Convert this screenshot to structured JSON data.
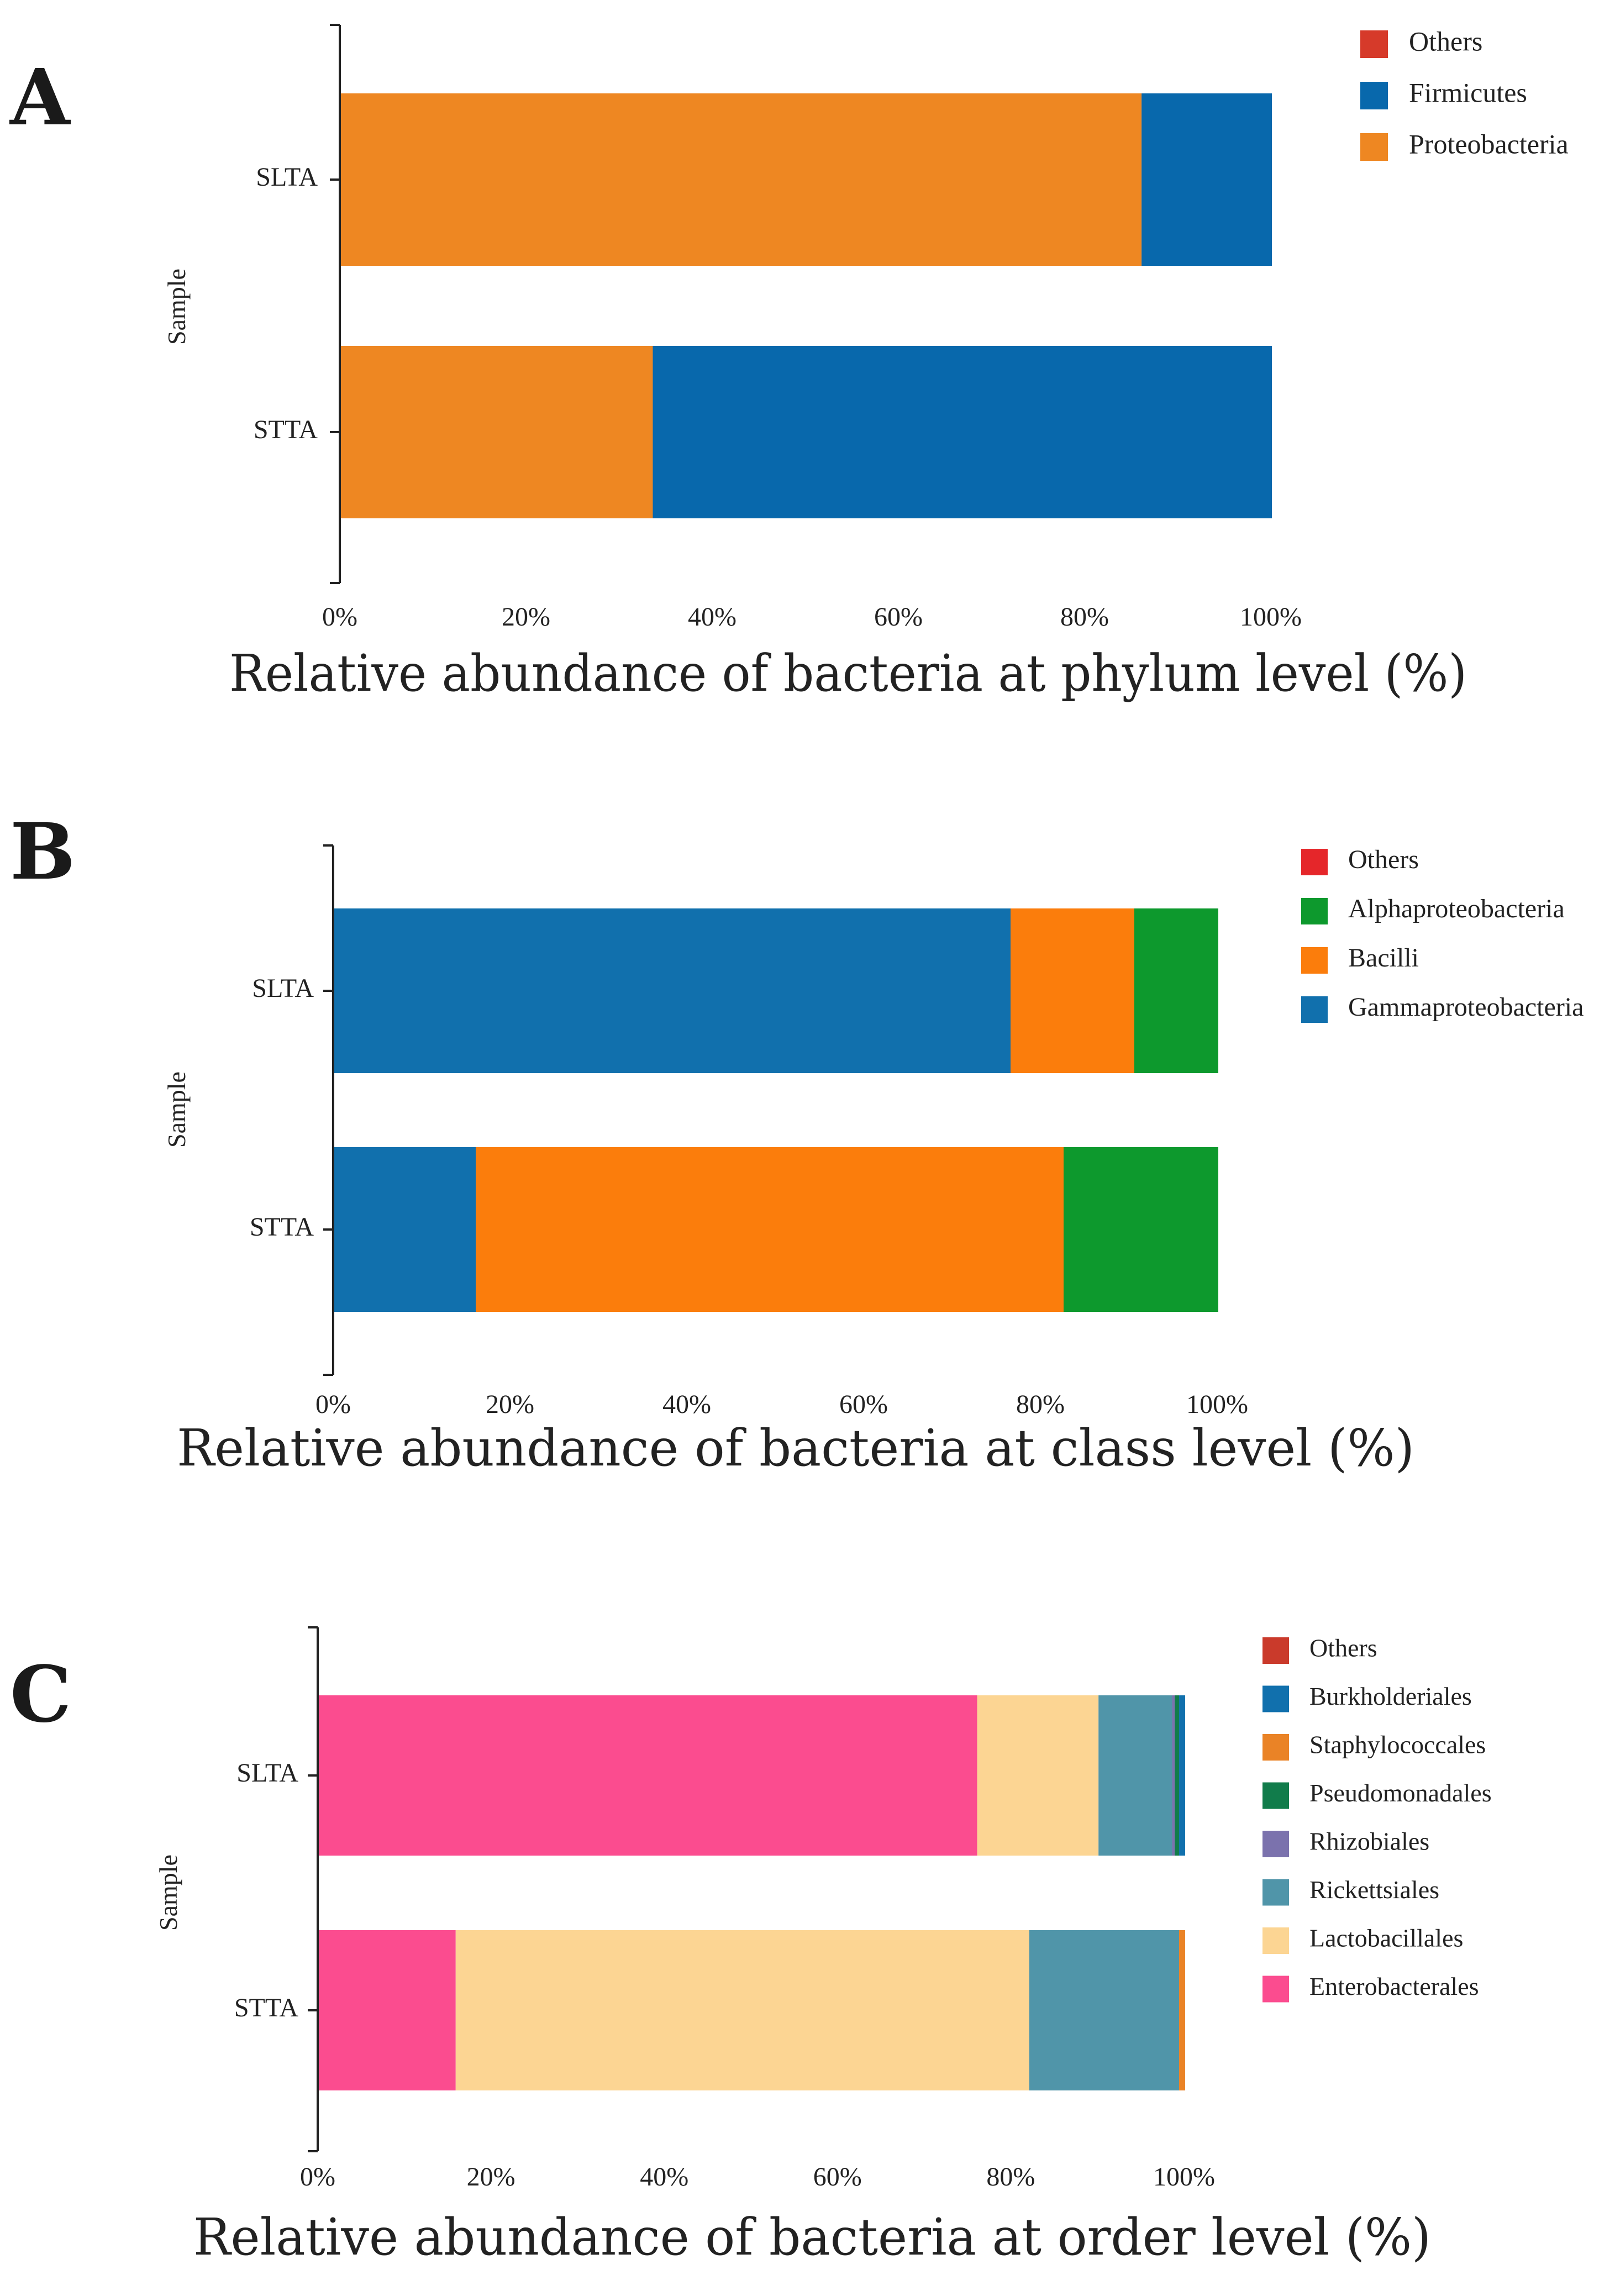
{
  "chart_data": [
    {
      "type": "bar",
      "orientation": "horizontal",
      "stacked": true,
      "panel_label": "A",
      "title": "",
      "xlabel": "Relative abundance of bacteria at phylum level (%)",
      "ylabel": "Sample",
      "xlim": [
        0,
        100
      ],
      "x_ticks": [
        "0%",
        "20%",
        "40%",
        "60%",
        "80%",
        "100%"
      ],
      "categories": [
        "SLTA",
        "STTA"
      ],
      "legend": [
        "Others",
        "Firmicutes",
        "Proteobacteria"
      ],
      "legend_position": "top-right",
      "series": [
        {
          "name": "Proteobacteria",
          "color": "#ee8722",
          "values": [
            86.0,
            33.5
          ]
        },
        {
          "name": "Firmicutes",
          "color": "#0868ac",
          "values": [
            14.0,
            66.5
          ]
        },
        {
          "name": "Others",
          "color": "#d63a2a",
          "values": [
            0.0,
            0.0
          ]
        }
      ]
    },
    {
      "type": "bar",
      "orientation": "horizontal",
      "stacked": true,
      "panel_label": "B",
      "title": "",
      "xlabel": "Relative abundance of bacteria at class level (%)",
      "ylabel": "Sample",
      "xlim": [
        0,
        100
      ],
      "x_ticks": [
        "0%",
        "20%",
        "40%",
        "60%",
        "80%",
        "100%"
      ],
      "categories": [
        "SLTA",
        "STTA"
      ],
      "legend": [
        "Others",
        "Alphaproteobacteria",
        "Bacilli",
        "Gammaproteobacteria"
      ],
      "legend_position": "top-right",
      "series": [
        {
          "name": "Gammaproteobacteria",
          "color": "#1170ad",
          "values": [
            76.5,
            16.0
          ]
        },
        {
          "name": "Bacilli",
          "color": "#fb7d0c",
          "values": [
            14.0,
            66.5
          ]
        },
        {
          "name": "Alphaproteobacteria",
          "color": "#0d992d",
          "values": [
            9.5,
            17.5
          ]
        },
        {
          "name": "Others",
          "color": "#e5262a",
          "values": [
            0.0,
            0.0
          ]
        }
      ]
    },
    {
      "type": "bar",
      "orientation": "horizontal",
      "stacked": true,
      "panel_label": "C",
      "title": "",
      "xlabel": "Relative abundance of bacteria at order level (%)",
      "ylabel": "Sample",
      "xlim": [
        0,
        100
      ],
      "x_ticks": [
        "0%",
        "20%",
        "40%",
        "60%",
        "80%",
        "100%"
      ],
      "categories": [
        "SLTA",
        "STTA"
      ],
      "legend": [
        "Others",
        "Burkholderiales",
        "Staphylococcales",
        "Pseudomonadales",
        "Rhizobiales",
        "Rickettsiales",
        "Lactobacillales",
        "Enterobacterales"
      ],
      "legend_position": "top-right",
      "series": [
        {
          "name": "Enterobacterales",
          "color": "#fb4c8f",
          "values": [
            76.0,
            15.8
          ]
        },
        {
          "name": "Lactobacillales",
          "color": "#fcd593",
          "values": [
            14.0,
            66.2
          ]
        },
        {
          "name": "Rickettsiales",
          "color": "#5095a9",
          "values": [
            8.5,
            17.3
          ]
        },
        {
          "name": "Rhizobiales",
          "color": "#7b72ad",
          "values": [
            0.3,
            0.0
          ]
        },
        {
          "name": "Pseudomonadales",
          "color": "#117c4b",
          "values": [
            0.5,
            0.0
          ]
        },
        {
          "name": "Staphylococcales",
          "color": "#ea8326",
          "values": [
            0.0,
            0.7
          ]
        },
        {
          "name": "Burkholderiales",
          "color": "#1170ad",
          "values": [
            0.7,
            0.0
          ]
        },
        {
          "name": "Others",
          "color": "#ca3a2b",
          "values": [
            0.0,
            0.0
          ]
        }
      ]
    }
  ]
}
